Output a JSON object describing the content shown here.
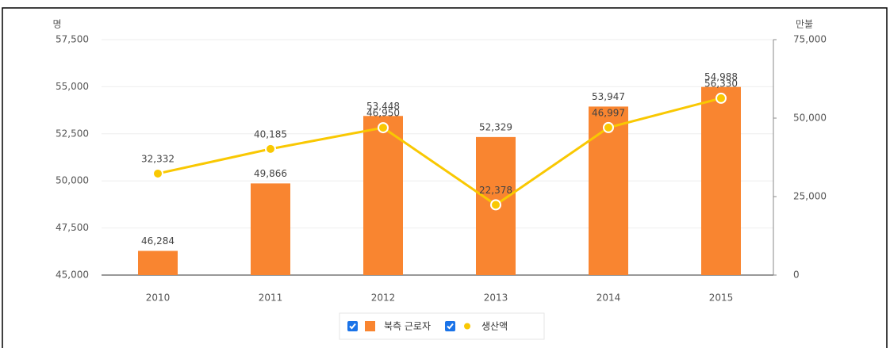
{
  "chart_data": {
    "type": "bar",
    "y_label": "명",
    "y2_label": "만불",
    "categories": [
      "2010",
      "2011",
      "2012",
      "2013",
      "2014",
      "2015"
    ],
    "series": [
      {
        "name": "북측 근로자",
        "type": "bar",
        "color": "#f98530",
        "values": [
          46284,
          49866,
          53448,
          52329,
          53947,
          54988
        ],
        "value_labels": [
          "46,284",
          "49,866",
          "53,448",
          "52,329",
          "53,947",
          "54,988"
        ]
      },
      {
        "name": "생산액",
        "type": "line",
        "axis": "y2",
        "color": "#f9c802",
        "values": [
          32332,
          40185,
          46950,
          22378,
          46997,
          56330
        ],
        "value_labels": [
          "32,332",
          "40,185",
          "46,950",
          "22,378",
          "46,997",
          "56,330"
        ]
      }
    ],
    "ylim": [
      45000,
      57500
    ],
    "yticks": [
      {
        "value": 45000,
        "label": "45,000"
      },
      {
        "value": 47500,
        "label": "47,500"
      },
      {
        "value": 50000,
        "label": "50,000"
      },
      {
        "value": 52500,
        "label": "52,500"
      },
      {
        "value": 55000,
        "label": "55,000"
      },
      {
        "value": 57500,
        "label": "57,500"
      }
    ],
    "y2lim": [
      0,
      75000
    ],
    "y2ticks": [
      0,
      {
        "value": 25000,
        "label": "25,000"
      },
      {
        "value": 50000,
        "label": "50,000"
      },
      {
        "value": 75000,
        "label": "75,000"
      }
    ],
    "grid": true,
    "legend": "bottom"
  }
}
